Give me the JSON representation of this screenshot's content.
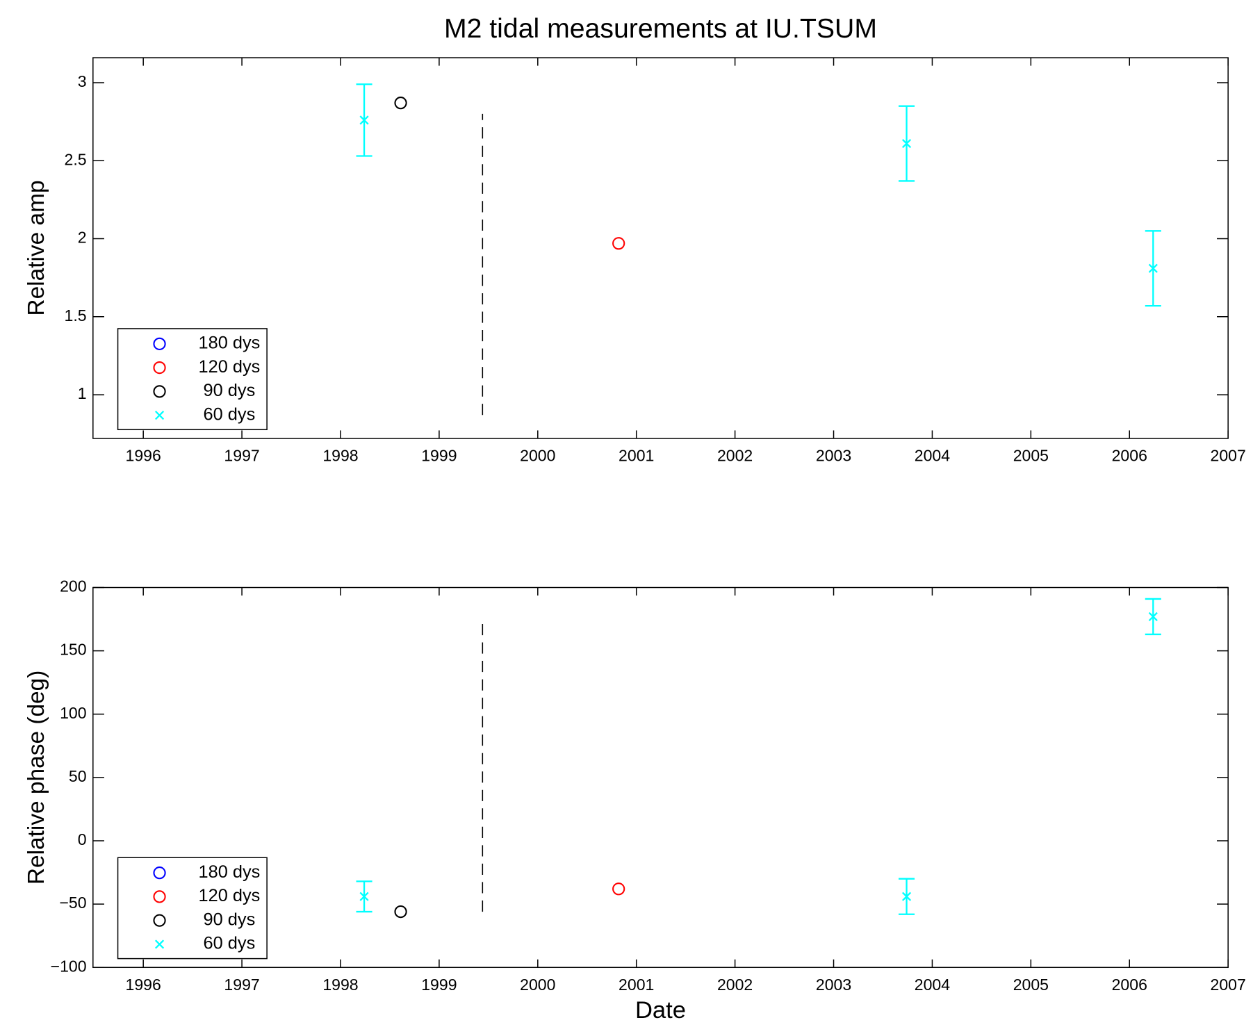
{
  "chart_data": [
    {
      "type": "scatter",
      "title": "M2 tidal measurements at IU.TSUM",
      "y_label": "Relative amp",
      "xlim": [
        1995.49,
        2007
      ],
      "xticks": [
        1996,
        1997,
        1998,
        1999,
        2000,
        2001,
        2002,
        2003,
        2004,
        2005,
        2006,
        2007
      ],
      "ylim": [
        0.72,
        3.16
      ],
      "yticks": [
        1,
        1.5,
        2,
        2.5,
        3
      ],
      "grid": false,
      "legend": "lower left",
      "vline": {
        "x": 1999.44,
        "y": [
          0.87,
          2.8
        ]
      },
      "series": [
        {
          "name": "180 dys",
          "color": "#0000ff",
          "marker": "o",
          "x": [],
          "values": [],
          "errors": []
        },
        {
          "name": "120 dys",
          "color": "#ff0000",
          "marker": "o",
          "x": [
            2000.82
          ],
          "values": [
            1.97
          ],
          "errors": []
        },
        {
          "name": "90 dys",
          "color": "#000000",
          "marker": "o",
          "x": [
            1998.61
          ],
          "values": [
            2.87
          ],
          "errors": []
        },
        {
          "name": "60 dys",
          "color": "#00ffff",
          "marker": "x",
          "x": [
            1998.24,
            2003.74,
            2006.24
          ],
          "values": [
            2.76,
            2.61,
            1.81
          ],
          "errors": [
            0.23,
            0.24,
            0.24
          ]
        }
      ]
    },
    {
      "type": "scatter",
      "y_label": "Relative phase (deg)",
      "x_label": "Date",
      "xlim": [
        1995.49,
        2007
      ],
      "xticks": [
        1996,
        1997,
        1998,
        1999,
        2000,
        2001,
        2002,
        2003,
        2004,
        2005,
        2006,
        2007
      ],
      "ylim": [
        -100,
        200
      ],
      "yticks": [
        {
          "value": -100,
          "label": "−100"
        },
        {
          "value": -50,
          "label": "−50"
        },
        0,
        50,
        100,
        150,
        200
      ],
      "grid": false,
      "legend": "lower left",
      "vline": {
        "x": 1999.44,
        "y": [
          -56,
          173
        ]
      },
      "series": [
        {
          "name": "180 dys",
          "color": "#0000ff",
          "marker": "o",
          "x": [],
          "values": [],
          "errors": []
        },
        {
          "name": "120 dys",
          "color": "#ff0000",
          "marker": "o",
          "x": [
            2000.82
          ],
          "values": [
            -38
          ],
          "errors": []
        },
        {
          "name": "90 dys",
          "color": "#000000",
          "marker": "o",
          "x": [
            1998.61
          ],
          "values": [
            -56
          ],
          "errors": []
        },
        {
          "name": "60 dys",
          "color": "#00ffff",
          "marker": "x",
          "x": [
            1998.24,
            2003.74,
            2006.24
          ],
          "values": [
            -44,
            -44,
            177
          ],
          "errors": [
            12,
            14,
            14
          ]
        }
      ]
    }
  ]
}
